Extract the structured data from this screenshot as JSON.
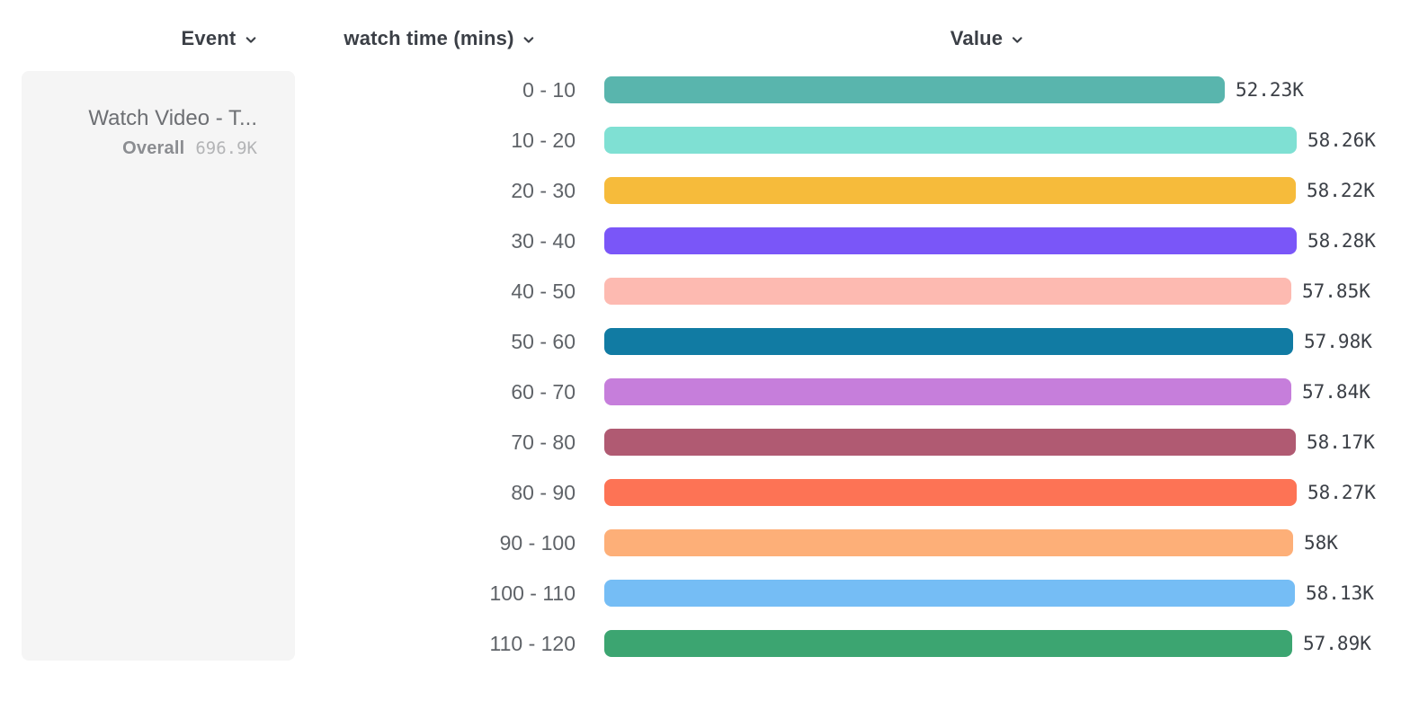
{
  "header": {
    "event_label": "Event",
    "breakdown_label": "watch time (mins)",
    "value_label": "Value"
  },
  "event_card": {
    "title": "Watch Video - T...",
    "overall_label": "Overall",
    "overall_value": "696.9K"
  },
  "chart_data": {
    "type": "bar",
    "orientation": "horizontal",
    "title": "",
    "xlabel": "Value",
    "ylabel": "watch time (mins)",
    "categories": [
      "0 - 10",
      "10 - 20",
      "20 - 30",
      "30 - 40",
      "40 - 50",
      "50 - 60",
      "60 - 70",
      "70 - 80",
      "80 - 90",
      "90 - 100",
      "100 - 110",
      "110 - 120"
    ],
    "values": [
      52230,
      58260,
      58220,
      58280,
      57850,
      57980,
      57840,
      58170,
      58270,
      58000,
      58130,
      57890
    ],
    "value_labels": [
      "52.23K",
      "58.26K",
      "58.22K",
      "58.28K",
      "57.85K",
      "57.98K",
      "57.84K",
      "58.17K",
      "58.27K",
      "58K",
      "58.13K",
      "57.89K"
    ],
    "bar_colors": [
      "#59b5ad",
      "#7fe0d3",
      "#f6bb3b",
      "#7a56f8",
      "#fdbab1",
      "#117ba3",
      "#c67edb",
      "#b05a72",
      "#fd7355",
      "#fdaf78",
      "#75bdf5",
      "#3ca571"
    ],
    "xlim": [
      0,
      58280
    ],
    "grid": false,
    "legend": false
  }
}
